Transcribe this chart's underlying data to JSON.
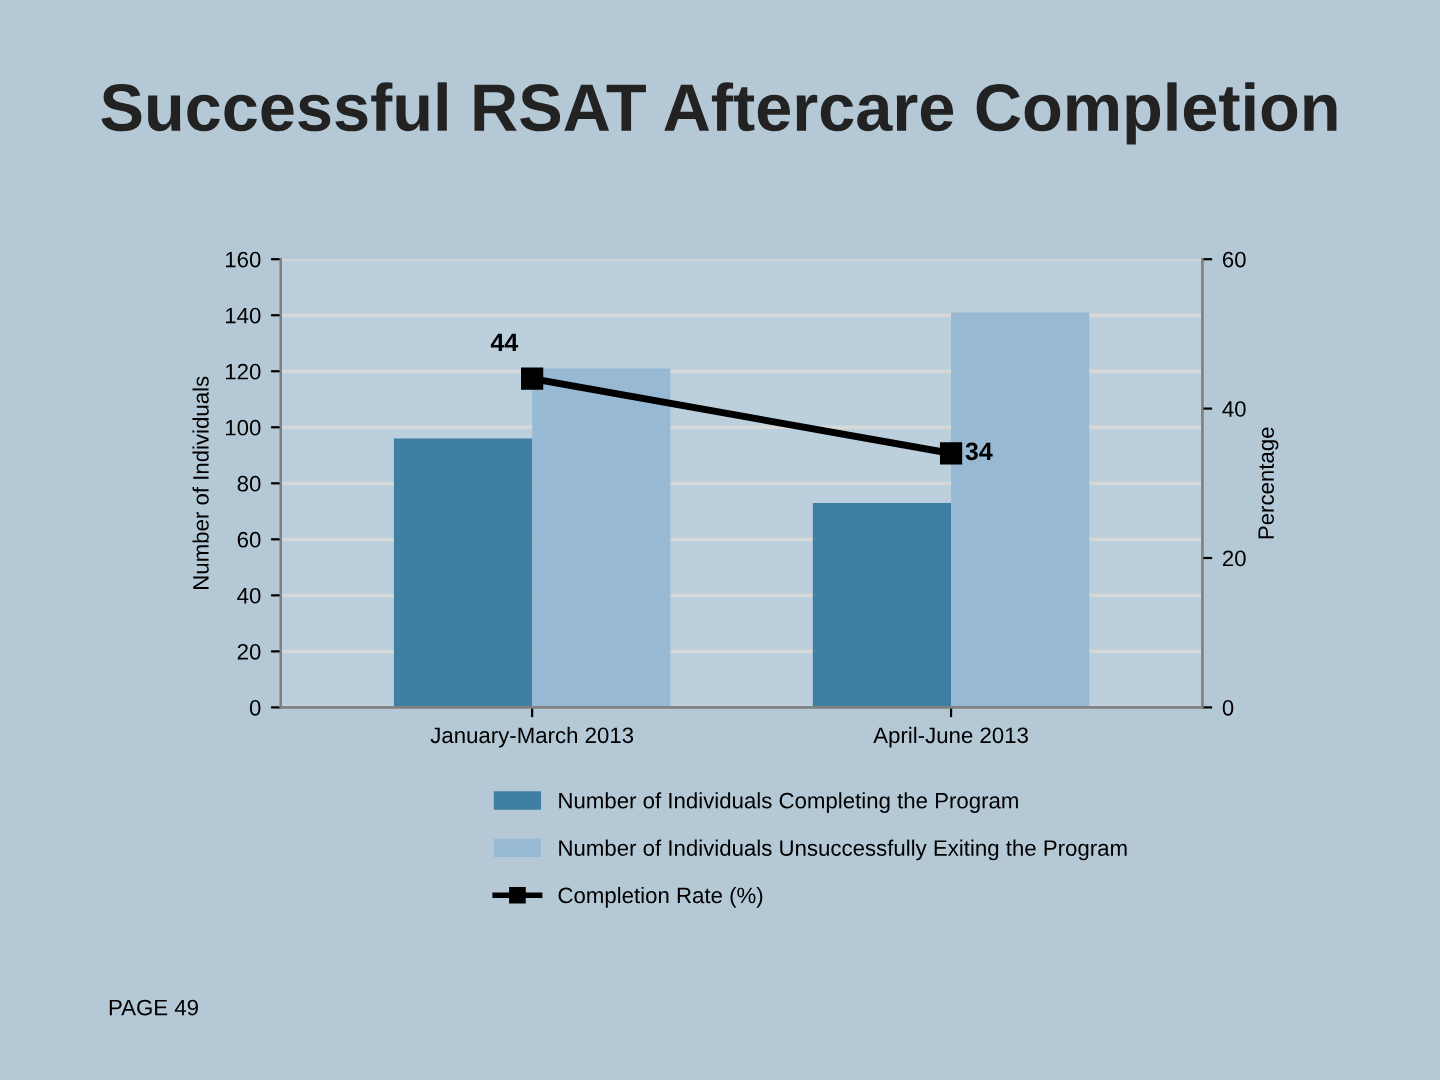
{
  "chart_data": {
    "type": "bar",
    "title": "Successful RSAT Aftercare Completion",
    "ylabel": "Number of Individuals",
    "y2label": "Percentage",
    "categories": [
      "January-March 2013",
      "April-June 2013"
    ],
    "series": [
      {
        "name": "Number of Individuals Completing the Program",
        "color": "#3f7fa3",
        "values": [
          96,
          73
        ]
      },
      {
        "name": "Number of Individuals Unsuccessfully Exiting the Program",
        "color": "#97b9d4",
        "values": [
          121,
          141
        ]
      },
      {
        "name": "Completion Rate (%)",
        "type": "line",
        "axis": "y2",
        "color": "#000000",
        "marker": "square",
        "values": [
          44,
          34
        ],
        "value_labels": [
          "44",
          "34"
        ]
      }
    ],
    "ylim": [
      0,
      160
    ],
    "yticks": [
      0,
      20,
      40,
      60,
      80,
      100,
      120,
      140,
      160
    ],
    "y2lim": [
      0,
      60
    ],
    "y2ticks": [
      0,
      20,
      40,
      60
    ],
    "grid": "y",
    "legend": "bottom",
    "annotations": [
      "PAGE 49"
    ]
  }
}
